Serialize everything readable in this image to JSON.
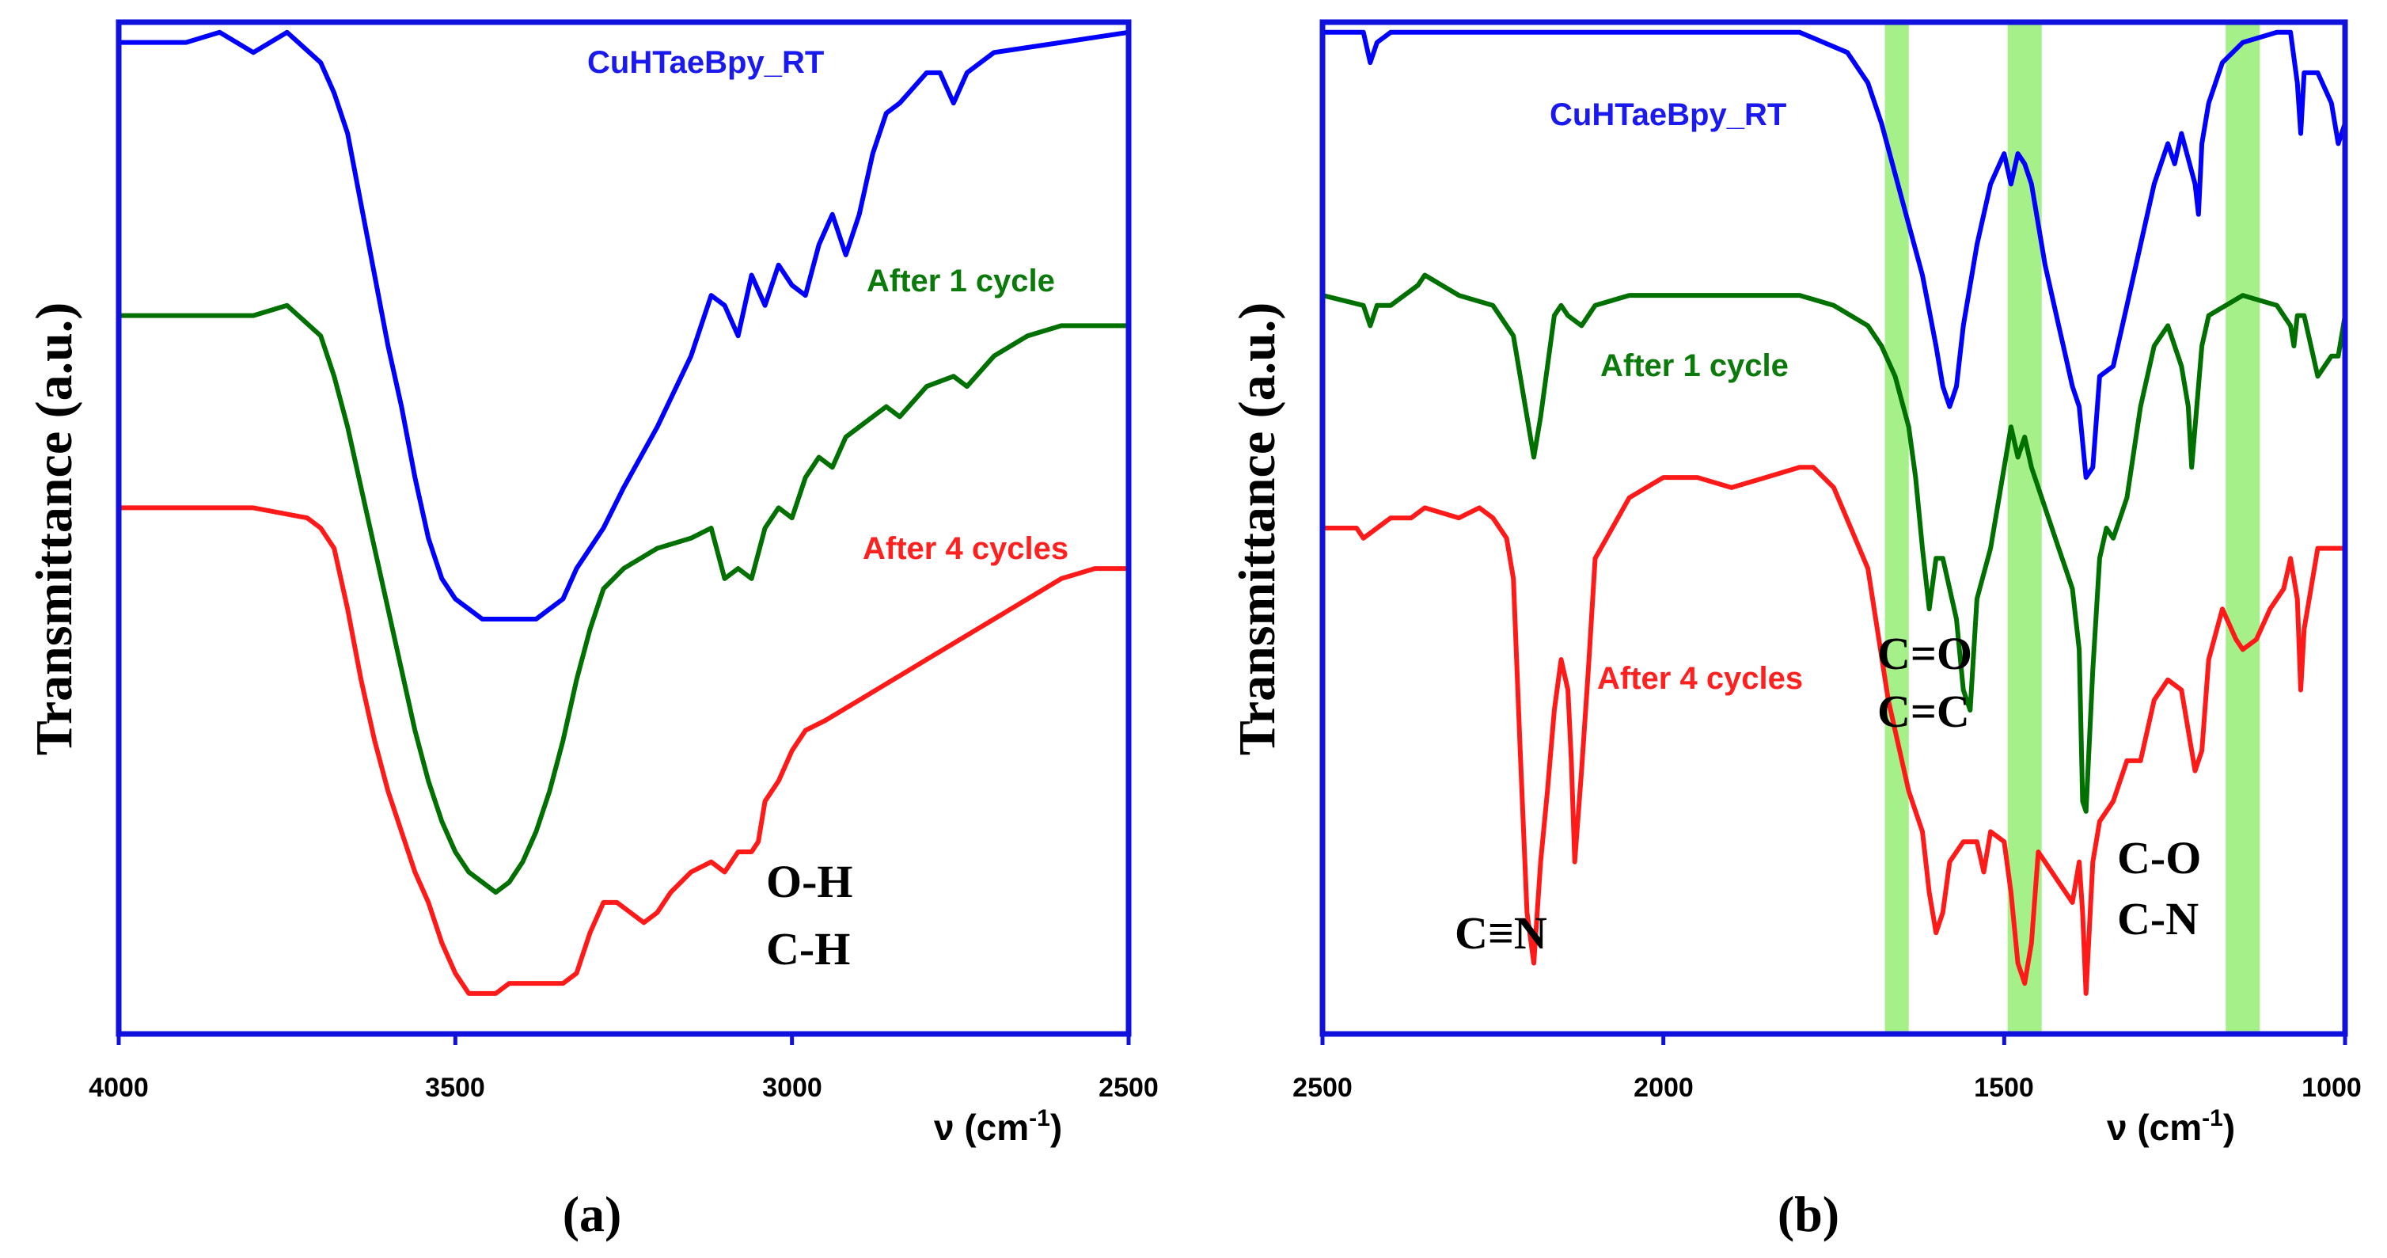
{
  "chart_data": [
    {
      "type": "line",
      "panel_label": "(a)",
      "ylabel": "Transmittance (a.u.)",
      "xlabel_prefix": "ν (cm",
      "xlabel_sup": "-1",
      "xlabel_suffix": ")",
      "xlim": [
        4000,
        2500
      ],
      "x_reversed": true,
      "xticks": [
        4000,
        3500,
        3000,
        2500
      ],
      "y_units": "offset transmittance (a.u.), 0 = bottom of frame, 100 = top of frame",
      "ylim": [
        0,
        100
      ],
      "annotations": [
        "O-H",
        "C-H"
      ],
      "series": [
        {
          "name": "CuHTaeBpy_RT",
          "color": "#0000ff",
          "x": [
            4000,
            3900,
            3850,
            3800,
            3750,
            3700,
            3680,
            3660,
            3640,
            3620,
            3600,
            3580,
            3560,
            3540,
            3520,
            3500,
            3480,
            3460,
            3440,
            3420,
            3400,
            3380,
            3360,
            3340,
            3320,
            3300,
            3280,
            3250,
            3200,
            3150,
            3120,
            3100,
            3080,
            3060,
            3040,
            3020,
            3000,
            2980,
            2960,
            2940,
            2920,
            2900,
            2880,
            2860,
            2840,
            2800,
            2780,
            2760,
            2740,
            2700,
            2600,
            2500
          ],
          "y": [
            98,
            98,
            99,
            97,
            99,
            96,
            93,
            89,
            82,
            75,
            68,
            62,
            55,
            49,
            45,
            43,
            42,
            41,
            41,
            41,
            41,
            41,
            42,
            43,
            46,
            48,
            50,
            54,
            60,
            67,
            73,
            72,
            69,
            75,
            72,
            76,
            74,
            73,
            78,
            81,
            77,
            81,
            87,
            91,
            92,
            95,
            95,
            92,
            95,
            97,
            98,
            99
          ]
        },
        {
          "name": "After 1 cycle",
          "color": "#007000",
          "x": [
            4000,
            3900,
            3800,
            3750,
            3700,
            3680,
            3660,
            3640,
            3620,
            3600,
            3580,
            3560,
            3540,
            3520,
            3500,
            3480,
            3460,
            3440,
            3420,
            3400,
            3380,
            3360,
            3340,
            3320,
            3300,
            3280,
            3250,
            3200,
            3150,
            3120,
            3100,
            3080,
            3060,
            3040,
            3020,
            3000,
            2980,
            2960,
            2940,
            2920,
            2900,
            2880,
            2860,
            2840,
            2800,
            2760,
            2740,
            2700,
            2650,
            2600,
            2550,
            2500
          ],
          "y": [
            71,
            71,
            71,
            72,
            69,
            65,
            60,
            54,
            48,
            42,
            36,
            30,
            25,
            21,
            18,
            16,
            15,
            14,
            15,
            17,
            20,
            24,
            29,
            35,
            40,
            44,
            46,
            48,
            49,
            50,
            45,
            46,
            45,
            50,
            52,
            51,
            55,
            57,
            56,
            59,
            60,
            61,
            62,
            61,
            64,
            65,
            64,
            67,
            69,
            70,
            70,
            70
          ]
        },
        {
          "name": "After 4 cycles",
          "color": "#ff1a1a",
          "x": [
            4000,
            3900,
            3800,
            3720,
            3700,
            3680,
            3660,
            3640,
            3620,
            3600,
            3580,
            3560,
            3540,
            3520,
            3500,
            3480,
            3460,
            3440,
            3420,
            3400,
            3380,
            3360,
            3340,
            3320,
            3300,
            3280,
            3260,
            3240,
            3220,
            3200,
            3180,
            3150,
            3120,
            3100,
            3080,
            3060,
            3050,
            3040,
            3020,
            3000,
            2980,
            2950,
            2900,
            2850,
            2800,
            2750,
            2700,
            2650,
            2600,
            2550,
            2500
          ],
          "y": [
            52,
            52,
            52,
            51,
            50,
            48,
            42,
            35,
            29,
            24,
            20,
            16,
            13,
            9,
            6,
            4,
            4,
            4,
            5,
            5,
            5,
            5,
            5,
            6,
            10,
            13,
            13,
            12,
            11,
            12,
            14,
            16,
            17,
            16,
            18,
            18,
            19,
            23,
            25,
            28,
            30,
            31,
            33,
            35,
            37,
            39,
            41,
            43,
            45,
            46,
            46
          ]
        }
      ]
    },
    {
      "type": "line",
      "panel_label": "(b)",
      "ylabel": "Transmittance (a.u.)",
      "xlabel_prefix": "ν (cm",
      "xlabel_sup": "-1",
      "xlabel_suffix": ")",
      "xlim": [
        2500,
        1000
      ],
      "x_reversed": true,
      "xticks": [
        2500,
        2000,
        1500,
        1000
      ],
      "y_units": "offset transmittance (a.u.), 0 = bottom of frame, 100 = top of frame",
      "ylim": [
        0,
        100
      ],
      "highlight_bands": [
        [
          1675,
          1640
        ],
        [
          1495,
          1445
        ],
        [
          1175,
          1125
        ]
      ],
      "highlight_color": "#a6f08a",
      "annotations": [
        "C≡N",
        "C=O",
        "C=C",
        "C-O",
        "C-N"
      ],
      "series": [
        {
          "name": "CuHTaeBpy_RT",
          "color": "#0000ff",
          "x": [
            2500,
            2440,
            2430,
            2420,
            2400,
            2300,
            2000,
            1800,
            1730,
            1700,
            1680,
            1660,
            1640,
            1620,
            1600,
            1590,
            1580,
            1570,
            1560,
            1540,
            1520,
            1500,
            1490,
            1480,
            1470,
            1460,
            1440,
            1420,
            1410,
            1400,
            1390,
            1380,
            1370,
            1360,
            1340,
            1320,
            1300,
            1280,
            1260,
            1250,
            1240,
            1220,
            1215,
            1210,
            1200,
            1180,
            1150,
            1100,
            1080,
            1070,
            1065,
            1060,
            1040,
            1020,
            1010,
            1000
          ],
          "y": [
            99,
            99,
            96,
            98,
            99,
            99,
            99,
            99,
            97,
            94,
            90,
            85,
            80,
            75,
            68,
            64,
            62,
            64,
            70,
            78,
            84,
            87,
            84,
            87,
            86,
            84,
            76,
            70,
            67,
            64,
            62,
            55,
            56,
            65,
            66,
            72,
            78,
            84,
            88,
            86,
            89,
            84,
            81,
            88,
            92,
            96,
            98,
            99,
            99,
            94,
            89,
            95,
            95,
            92,
            88,
            90
          ]
        },
        {
          "name": "After 1 cycle",
          "color": "#007000",
          "x": [
            2500,
            2440,
            2430,
            2420,
            2400,
            2360,
            2350,
            2300,
            2250,
            2220,
            2200,
            2190,
            2180,
            2160,
            2150,
            2140,
            2120,
            2100,
            2050,
            2000,
            1900,
            1800,
            1750,
            1700,
            1680,
            1660,
            1640,
            1630,
            1620,
            1610,
            1600,
            1590,
            1580,
            1570,
            1560,
            1550,
            1540,
            1520,
            1500,
            1490,
            1480,
            1470,
            1460,
            1440,
            1420,
            1410,
            1400,
            1390,
            1385,
            1380,
            1370,
            1360,
            1350,
            1340,
            1320,
            1300,
            1280,
            1260,
            1240,
            1230,
            1225,
            1220,
            1210,
            1200,
            1150,
            1100,
            1080,
            1075,
            1070,
            1060,
            1040,
            1020,
            1010,
            1000
          ],
          "y": [
            73,
            72,
            70,
            72,
            72,
            74,
            75,
            73,
            72,
            69,
            61,
            57,
            61,
            71,
            72,
            71,
            70,
            72,
            73,
            73,
            73,
            73,
            72,
            70,
            68,
            65,
            60,
            55,
            48,
            42,
            47,
            47,
            44,
            41,
            34,
            32,
            43,
            48,
            56,
            60,
            57,
            59,
            56,
            52,
            48,
            46,
            44,
            38,
            23,
            22,
            36,
            47,
            50,
            49,
            53,
            62,
            68,
            70,
            66,
            62,
            56,
            60,
            68,
            71,
            73,
            72,
            70,
            68,
            71,
            71,
            65,
            67,
            67,
            71
          ]
        },
        {
          "name": "After 4 cycles",
          "color": "#ff1a1a",
          "x": [
            2500,
            2450,
            2440,
            2400,
            2370,
            2350,
            2300,
            2270,
            2250,
            2230,
            2220,
            2210,
            2200,
            2190,
            2180,
            2170,
            2160,
            2150,
            2140,
            2135,
            2130,
            2120,
            2110,
            2100,
            2050,
            2000,
            1950,
            1900,
            1850,
            1800,
            1780,
            1750,
            1700,
            1670,
            1640,
            1620,
            1610,
            1600,
            1590,
            1580,
            1560,
            1540,
            1530,
            1520,
            1500,
            1490,
            1480,
            1470,
            1460,
            1450,
            1440,
            1420,
            1410,
            1400,
            1390,
            1385,
            1380,
            1370,
            1360,
            1340,
            1320,
            1300,
            1280,
            1260,
            1240,
            1230,
            1220,
            1210,
            1200,
            1180,
            1160,
            1150,
            1130,
            1110,
            1090,
            1080,
            1070,
            1065,
            1060,
            1040,
            1020,
            1000
          ],
          "y": [
            50,
            50,
            49,
            51,
            51,
            52,
            51,
            52,
            51,
            49,
            45,
            28,
            12,
            7,
            17,
            24,
            32,
            37,
            34,
            27,
            17,
            26,
            36,
            47,
            53,
            55,
            55,
            54,
            55,
            56,
            56,
            54,
            46,
            33,
            24,
            20,
            14,
            10,
            12,
            17,
            19,
            19,
            16,
            20,
            19,
            14,
            7,
            5,
            9,
            18,
            17,
            15,
            14,
            13,
            17,
            12,
            4,
            17,
            21,
            23,
            27,
            27,
            33,
            35,
            34,
            30,
            26,
            28,
            37,
            42,
            39,
            38,
            39,
            42,
            44,
            47,
            43,
            34,
            40,
            48,
            48,
            48
          ]
        }
      ]
    }
  ],
  "panels": [
    {
      "series_labels": [
        "CuHTaeBpy_RT",
        "After 1 cycle",
        "After 4 cycles"
      ],
      "tick_labels": [
        "4000",
        "3500",
        "3000",
        "2500"
      ],
      "annot_lines": [
        "O-H",
        "C-H"
      ],
      "panel_label": "(a)"
    },
    {
      "series_labels": [
        "CuHTaeBpy_RT",
        "After 1 cycle",
        "After 4 cycles"
      ],
      "tick_labels": [
        "2500",
        "2000",
        "1500",
        "1000"
      ],
      "annot_lines": [
        "C≡N",
        "C=O",
        "C=C",
        "C-O",
        "C-N"
      ],
      "panel_label": "(b)"
    }
  ]
}
